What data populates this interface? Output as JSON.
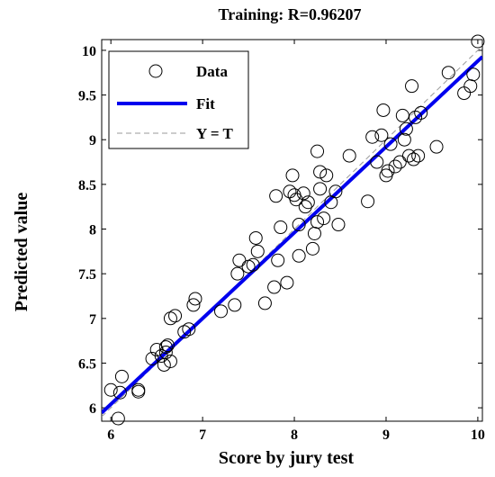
{
  "chart_data": {
    "type": "scatter",
    "title": "Training: R=0.96207",
    "xlabel": "Score by jury test",
    "ylabel": "Predicted value",
    "xlim": [
      5.9,
      10.05
    ],
    "ylim": [
      5.85,
      10.12
    ],
    "xticks": [
      "6",
      "7",
      "8",
      "9",
      "10"
    ],
    "yticks": [
      "6",
      "6.5",
      "7",
      "7.5",
      "8",
      "8.5",
      "9",
      "9.5",
      "10"
    ],
    "grid": false,
    "legend_position": "top-left",
    "legend": [
      {
        "label": "Data",
        "marker": "circle"
      },
      {
        "label": "Fit",
        "line": "solid"
      },
      {
        "label": "Y = T",
        "line": "dashed"
      }
    ],
    "fit_line": {
      "slope": 0.96,
      "intercept": 0.28,
      "color": "#0000ee"
    },
    "identity_line": {
      "color": "#999999"
    },
    "points": [
      [
        6.0,
        6.2
      ],
      [
        6.08,
        5.88
      ],
      [
        6.1,
        6.17
      ],
      [
        6.12,
        6.35
      ],
      [
        6.3,
        6.18
      ],
      [
        6.3,
        6.2
      ],
      [
        6.45,
        6.55
      ],
      [
        6.5,
        6.65
      ],
      [
        6.55,
        6.58
      ],
      [
        6.58,
        6.48
      ],
      [
        6.6,
        6.68
      ],
      [
        6.6,
        6.62
      ],
      [
        6.62,
        6.7
      ],
      [
        6.65,
        6.52
      ],
      [
        6.65,
        7.0
      ],
      [
        6.7,
        7.03
      ],
      [
        6.8,
        6.85
      ],
      [
        6.85,
        6.88
      ],
      [
        6.9,
        7.15
      ],
      [
        6.92,
        7.22
      ],
      [
        7.2,
        7.08
      ],
      [
        7.35,
        7.15
      ],
      [
        7.38,
        7.5
      ],
      [
        7.4,
        7.65
      ],
      [
        7.5,
        7.58
      ],
      [
        7.55,
        7.6
      ],
      [
        7.58,
        7.9
      ],
      [
        7.6,
        7.75
      ],
      [
        7.68,
        7.17
      ],
      [
        7.78,
        7.35
      ],
      [
        7.8,
        8.37
      ],
      [
        7.82,
        7.65
      ],
      [
        7.85,
        8.02
      ],
      [
        7.92,
        7.4
      ],
      [
        7.95,
        8.42
      ],
      [
        7.98,
        8.6
      ],
      [
        8.0,
        8.38
      ],
      [
        8.02,
        8.33
      ],
      [
        8.05,
        8.05
      ],
      [
        8.05,
        7.7
      ],
      [
        8.1,
        8.4
      ],
      [
        8.12,
        8.25
      ],
      [
        8.15,
        8.3
      ],
      [
        8.2,
        7.78
      ],
      [
        8.22,
        7.95
      ],
      [
        8.25,
        8.08
      ],
      [
        8.25,
        8.87
      ],
      [
        8.28,
        8.45
      ],
      [
        8.28,
        8.64
      ],
      [
        8.32,
        8.12
      ],
      [
        8.35,
        8.6
      ],
      [
        8.4,
        8.3
      ],
      [
        8.45,
        8.42
      ],
      [
        8.48,
        8.05
      ],
      [
        8.6,
        8.82
      ],
      [
        8.8,
        8.31
      ],
      [
        8.85,
        9.03
      ],
      [
        8.9,
        8.75
      ],
      [
        8.95,
        9.05
      ],
      [
        8.97,
        9.33
      ],
      [
        9.0,
        8.6
      ],
      [
        9.02,
        8.65
      ],
      [
        9.05,
        8.95
      ],
      [
        9.1,
        8.7
      ],
      [
        9.15,
        8.75
      ],
      [
        9.18,
        9.27
      ],
      [
        9.2,
        9.0
      ],
      [
        9.22,
        9.12
      ],
      [
        9.25,
        8.82
      ],
      [
        9.28,
        9.6
      ],
      [
        9.3,
        8.78
      ],
      [
        9.32,
        9.25
      ],
      [
        9.35,
        8.82
      ],
      [
        9.38,
        9.3
      ],
      [
        9.55,
        8.92
      ],
      [
        9.68,
        9.75
      ],
      [
        9.85,
        9.52
      ],
      [
        9.92,
        9.6
      ],
      [
        9.95,
        9.73
      ],
      [
        10.0,
        10.1
      ]
    ]
  }
}
